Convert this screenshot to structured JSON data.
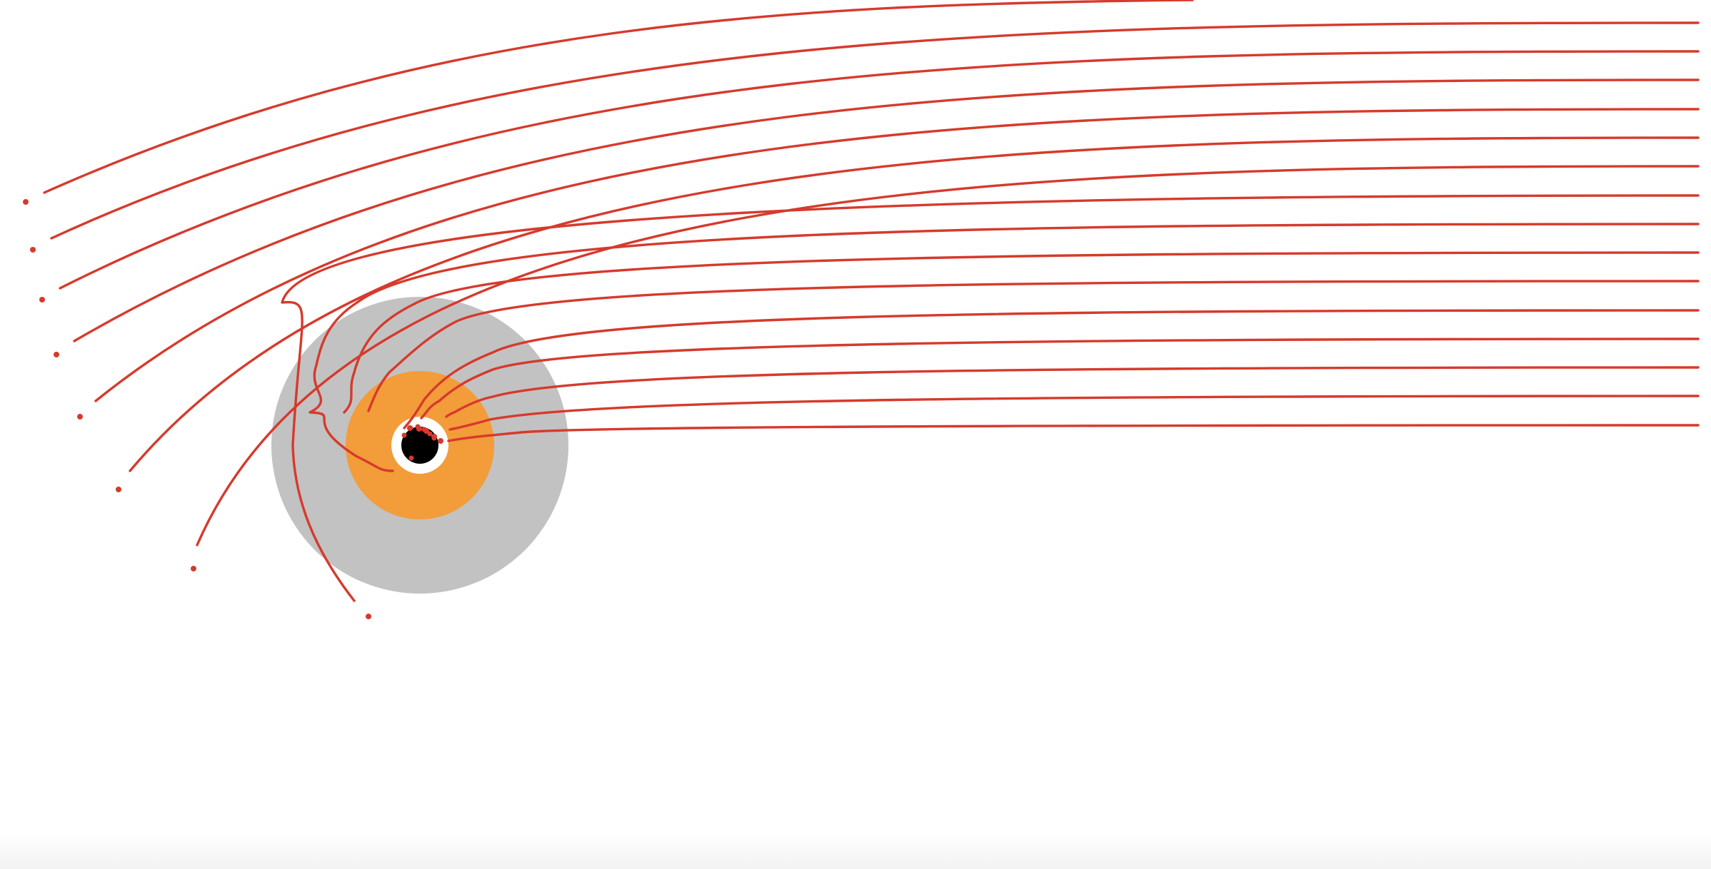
{
  "diagram": {
    "description_text": "",
    "colors": {
      "background": "#ffffff",
      "trajectory": "#d63a2c",
      "outer_disk": "#c2c2c2",
      "inner_disk": "#f39c3a",
      "ring": "#ffffff",
      "core": "#000000"
    },
    "elements": {
      "outer_disk": "gray-region",
      "inner_disk": "orange-region",
      "ring": "white-ring",
      "core": "black-hole-core"
    },
    "trajectory_count": 16,
    "trajectory_style": "curved light rays entering from the right"
  }
}
